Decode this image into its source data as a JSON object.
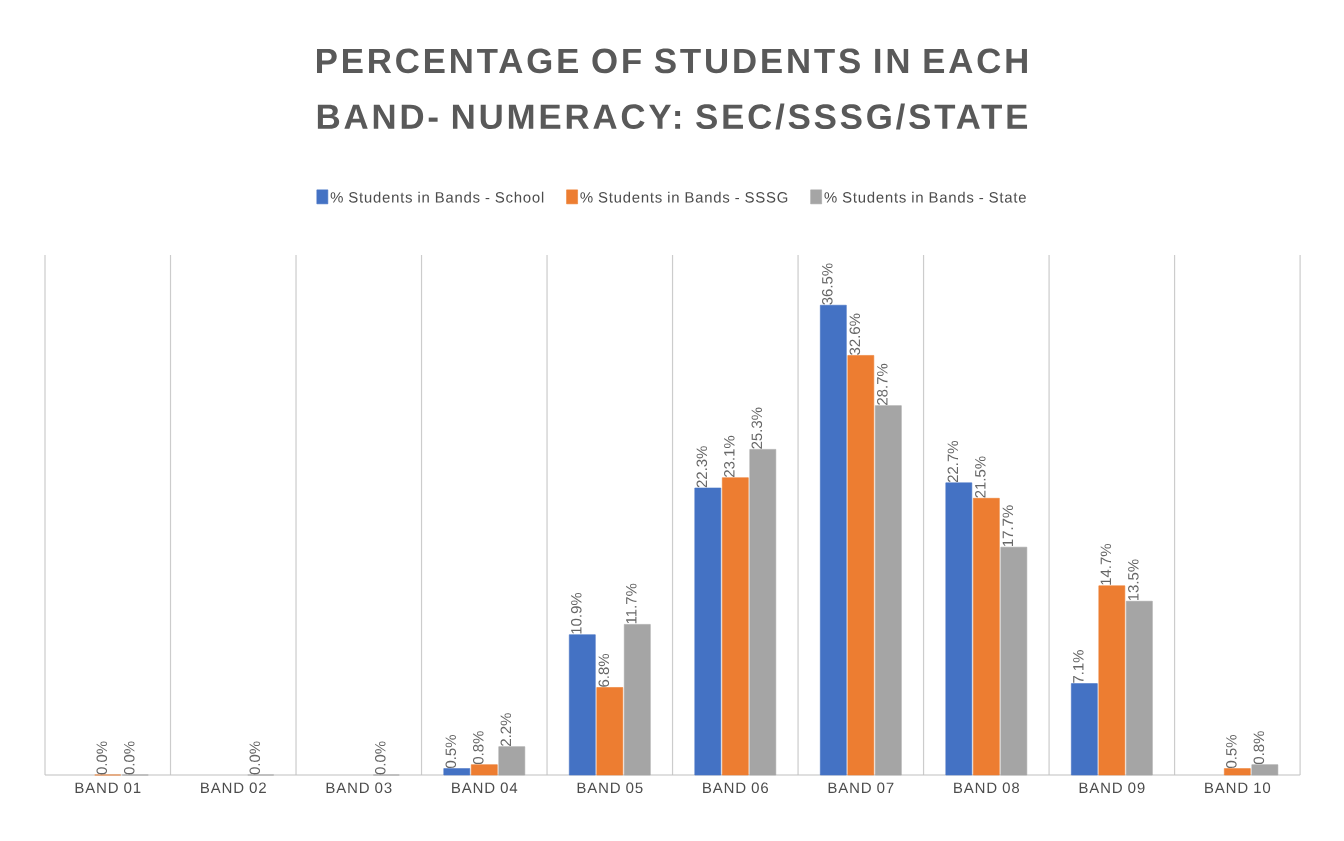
{
  "chart_data": {
    "type": "bar",
    "title": "PERCENTAGE OF STUDENTS IN EACH BAND- NUMERACY: SEC/SSSG/STATE",
    "categories": [
      "BAND 01",
      "BAND 02",
      "BAND 03",
      "BAND 04",
      "BAND 05",
      "BAND 06",
      "BAND 07",
      "BAND 08",
      "BAND 09",
      "BAND 10"
    ],
    "series": [
      {
        "name": "% Students in Bands - School",
        "color": "#4472c4",
        "values": [
          null,
          null,
          null,
          0.5,
          10.9,
          22.3,
          36.5,
          22.7,
          7.1,
          null
        ],
        "value_labels": [
          null,
          null,
          null,
          "0.5%",
          "10.9%",
          "22.3%",
          "36.5%",
          "22.7%",
          "7.1%",
          null
        ]
      },
      {
        "name": "% Students in Bands - SSSG",
        "color": "#ed7d31",
        "values": [
          0.0,
          null,
          null,
          0.8,
          6.8,
          23.1,
          32.6,
          21.5,
          14.7,
          0.5
        ],
        "value_labels": [
          "0.0%",
          null,
          null,
          "0.8%",
          "6.8%",
          "23.1%",
          "32.6%",
          "21.5%",
          "14.7%",
          "0.5%"
        ]
      },
      {
        "name": "% Students in Bands - State",
        "color": "#a5a5a5",
        "values": [
          0.0,
          0.0,
          0.0,
          2.2,
          11.7,
          25.3,
          28.7,
          17.7,
          13.5,
          0.8
        ],
        "value_labels": [
          "0.0%",
          "0.0%",
          "0.0%",
          "2.2%",
          "11.7%",
          "25.3%",
          "28.7%",
          "17.7%",
          "13.5%",
          "0.8%"
        ]
      }
    ],
    "grid": "x",
    "legend": "top"
  }
}
